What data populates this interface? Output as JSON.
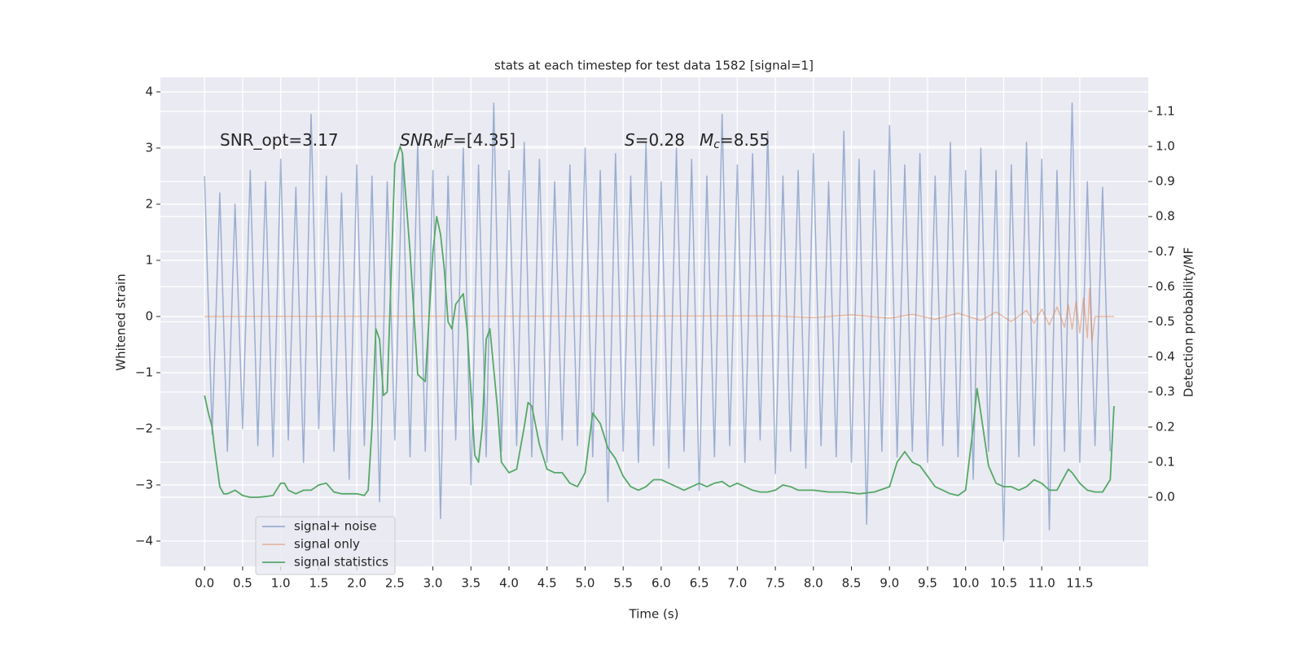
{
  "chart_data": {
    "type": "line",
    "title": "stats at each timestep for test data 1582 [signal=1]",
    "xlabel": "Time (s)",
    "ylabel": "Whitened strain",
    "y2label": "Detection probability/MF",
    "xlim": [
      -0.58,
      12.4
    ],
    "ylim": [
      -4.45,
      4.26
    ],
    "y2lim": [
      -0.197,
      1.197
    ],
    "xticks": [
      {
        "value": 0,
        "label": "0.0"
      },
      0.5,
      {
        "value": 1,
        "label": "1.0"
      },
      1.5,
      {
        "value": 2,
        "label": "2.0"
      },
      2.5,
      {
        "value": 3,
        "label": "3.0"
      },
      3.5,
      {
        "value": 4,
        "label": "4.0"
      },
      4.5,
      {
        "value": 5,
        "label": "5.0"
      },
      5.5,
      {
        "value": 6,
        "label": "6.0"
      },
      6.5,
      {
        "value": 7,
        "label": "7.0"
      },
      7.5,
      {
        "value": 8,
        "label": "8.0"
      },
      8.5,
      {
        "value": 9,
        "label": "9.0"
      },
      9.5,
      {
        "value": 10,
        "label": "10.0"
      },
      10.5,
      {
        "value": 11,
        "label": "11.0"
      },
      11.5
    ],
    "yticks": [
      {
        "value": -4,
        "label": "−4"
      },
      {
        "value": -3,
        "label": "−3"
      },
      {
        "value": -2,
        "label": "−2"
      },
      {
        "value": -1,
        "label": "−1"
      },
      0,
      1,
      2,
      3,
      4
    ],
    "y2ticks": [
      {
        "value": 0,
        "label": "0.0"
      },
      0.1,
      0.2,
      0.3,
      0.4,
      0.5,
      0.6,
      0.7,
      0.8,
      0.9,
      {
        "value": 1,
        "label": "1.0"
      },
      1.1
    ],
    "grid": true,
    "legend": "lower left",
    "annotations": [
      {
        "parts": [
          {
            "text": "SNR_opt=3.17",
            "style": "normal"
          }
        ]
      },
      {
        "parts": [
          {
            "text": "SNR",
            "style": "italic"
          },
          {
            "text": "M",
            "style": "italic-sub"
          },
          {
            "text": "F",
            "style": "italic"
          },
          {
            "text": "=[4.35]",
            "style": "normal"
          }
        ]
      },
      {
        "parts": [
          {
            "text": "S",
            "style": "italic"
          },
          {
            "text": "=0.28",
            "style": "normal"
          }
        ]
      },
      {
        "parts": [
          {
            "text": "M",
            "style": "italic"
          },
          {
            "text": "c",
            "style": "italic-sub"
          },
          {
            "text": "=8.55",
            "style": "normal"
          }
        ]
      }
    ],
    "series": [
      {
        "name": "signal+ noise",
        "color": "#4c72b0",
        "opacity": 0.5,
        "axis": "y",
        "x": [
          0,
          0.1,
          0.2,
          0.3,
          0.4,
          0.5,
          0.6,
          0.7,
          0.8,
          0.9,
          1.0,
          1.1,
          1.2,
          1.3,
          1.4,
          1.5,
          1.6,
          1.7,
          1.8,
          1.9,
          2.0,
          2.1,
          2.2,
          2.3,
          2.4,
          2.5,
          2.6,
          2.7,
          2.8,
          2.9,
          3.0,
          3.1,
          3.2,
          3.3,
          3.4,
          3.5,
          3.6,
          3.7,
          3.8,
          3.9,
          4.0,
          4.1,
          4.2,
          4.3,
          4.4,
          4.5,
          4.6,
          4.7,
          4.8,
          4.9,
          5.0,
          5.1,
          5.2,
          5.3,
          5.4,
          5.5,
          5.6,
          5.7,
          5.8,
          5.9,
          6.0,
          6.1,
          6.2,
          6.3,
          6.4,
          6.5,
          6.6,
          6.7,
          6.8,
          6.9,
          7.0,
          7.1,
          7.2,
          7.3,
          7.4,
          7.5,
          7.6,
          7.7,
          7.8,
          7.9,
          8.0,
          8.1,
          8.2,
          8.3,
          8.4,
          8.5,
          8.6,
          8.7,
          8.8,
          8.9,
          9.0,
          9.1,
          9.2,
          9.3,
          9.4,
          9.5,
          9.6,
          9.7,
          9.8,
          9.9,
          10.0,
          10.1,
          10.2,
          10.3,
          10.4,
          10.5,
          10.6,
          10.7,
          10.8,
          10.9,
          11.0,
          11.1,
          11.2,
          11.3,
          11.4,
          11.5,
          11.6,
          11.7,
          11.8,
          11.9
        ],
        "values": [
          2.5,
          -2.1,
          2.2,
          -2.4,
          2.0,
          -2.0,
          2.6,
          -2.3,
          2.4,
          -2.5,
          2.8,
          -2.2,
          2.3,
          -2.6,
          3.6,
          -2.0,
          2.5,
          -2.4,
          2.2,
          -2.9,
          2.7,
          -2.3,
          2.5,
          -3.3,
          2.4,
          -2.2,
          2.9,
          -2.5,
          3.1,
          -2.4,
          2.6,
          -3.6,
          2.5,
          -2.2,
          3.0,
          -3.0,
          2.7,
          -2.5,
          3.8,
          -2.4,
          2.6,
          -2.3,
          3.1,
          -2.5,
          2.8,
          -2.6,
          2.4,
          -2.2,
          2.7,
          -2.3,
          3.0,
          -2.5,
          2.6,
          -3.3,
          2.9,
          -2.4,
          2.5,
          -2.6,
          3.1,
          -2.3,
          2.4,
          -2.7,
          3.0,
          -2.4,
          2.8,
          -3.1,
          2.5,
          -2.5,
          3.6,
          -2.3,
          2.7,
          -2.6,
          2.9,
          -2.2,
          3.3,
          -2.8,
          2.5,
          -2.4,
          2.6,
          -2.7,
          2.9,
          -2.3,
          2.4,
          -2.5,
          3.3,
          -2.6,
          2.8,
          -3.7,
          2.6,
          -2.4,
          3.4,
          -2.5,
          2.7,
          -2.4,
          2.9,
          -2.6,
          2.5,
          -2.3,
          3.1,
          -2.5,
          2.6,
          -2.9,
          3.0,
          -2.4,
          2.6,
          -4.0,
          2.7,
          -2.5,
          3.1,
          -2.3,
          2.8,
          -3.8,
          2.6,
          -2.4,
          3.8,
          -2.6,
          2.4,
          -2.3,
          2.3,
          -2.4
        ]
      },
      {
        "name": "signal only",
        "color": "#dd8452",
        "opacity": 0.5,
        "axis": "y",
        "x": [
          0,
          7.5,
          8.0,
          8.5,
          9.0,
          9.3,
          9.6,
          9.9,
          10.2,
          10.4,
          10.6,
          10.8,
          10.9,
          11.0,
          11.1,
          11.2,
          11.3,
          11.35,
          11.4,
          11.45,
          11.5,
          11.55,
          11.6,
          11.63,
          11.66,
          11.7,
          11.95
        ],
        "values": [
          0,
          0.01,
          -0.02,
          0.03,
          -0.03,
          0.04,
          -0.05,
          0.06,
          -0.07,
          0.08,
          -0.09,
          0.11,
          -0.12,
          0.13,
          -0.15,
          0.17,
          -0.19,
          0.21,
          -0.23,
          0.26,
          -0.29,
          0.33,
          -0.38,
          0.5,
          -0.45,
          0,
          0
        ]
      },
      {
        "name": "signal statistics",
        "color": "#55a868",
        "opacity": 1,
        "axis": "y2",
        "x": [
          0,
          0.05,
          0.1,
          0.13,
          0.2,
          0.25,
          0.3,
          0.4,
          0.5,
          0.6,
          0.7,
          0.8,
          0.9,
          1.0,
          1.05,
          1.1,
          1.2,
          1.3,
          1.4,
          1.5,
          1.6,
          1.7,
          1.8,
          1.9,
          2.0,
          2.1,
          2.15,
          2.2,
          2.25,
          2.3,
          2.35,
          2.4,
          2.5,
          2.57,
          2.6,
          2.7,
          2.8,
          2.9,
          3.0,
          3.05,
          3.1,
          3.15,
          3.2,
          3.25,
          3.3,
          3.4,
          3.45,
          3.5,
          3.55,
          3.6,
          3.65,
          3.7,
          3.75,
          3.85,
          3.9,
          4.0,
          4.1,
          4.2,
          4.25,
          4.3,
          4.4,
          4.5,
          4.6,
          4.7,
          4.8,
          4.9,
          5.0,
          5.1,
          5.2,
          5.3,
          5.4,
          5.5,
          5.6,
          5.7,
          5.8,
          5.9,
          6.0,
          6.1,
          6.2,
          6.3,
          6.4,
          6.5,
          6.6,
          6.7,
          6.8,
          6.9,
          7.0,
          7.1,
          7.2,
          7.3,
          7.4,
          7.5,
          7.6,
          7.7,
          7.8,
          7.9,
          8.0,
          8.2,
          8.4,
          8.6,
          8.8,
          9.0,
          9.1,
          9.2,
          9.3,
          9.4,
          9.5,
          9.6,
          9.7,
          9.8,
          9.9,
          10.0,
          10.1,
          10.15,
          10.2,
          10.3,
          10.4,
          10.5,
          10.6,
          10.7,
          10.8,
          10.9,
          11.0,
          11.1,
          11.2,
          11.3,
          11.35,
          11.4,
          11.5,
          11.6,
          11.7,
          11.8,
          11.9,
          11.95
        ],
        "values": [
          0.29,
          0.24,
          0.2,
          0.14,
          0.03,
          0.01,
          0.01,
          0.02,
          0.005,
          0.0,
          0.0,
          0.002,
          0.005,
          0.04,
          0.04,
          0.02,
          0.01,
          0.02,
          0.02,
          0.035,
          0.04,
          0.015,
          0.01,
          0.01,
          0.01,
          0.005,
          0.02,
          0.2,
          0.48,
          0.45,
          0.29,
          0.3,
          0.95,
          1.0,
          0.98,
          0.7,
          0.35,
          0.33,
          0.7,
          0.8,
          0.75,
          0.65,
          0.5,
          0.48,
          0.55,
          0.58,
          0.48,
          0.3,
          0.12,
          0.1,
          0.2,
          0.45,
          0.48,
          0.25,
          0.1,
          0.07,
          0.08,
          0.2,
          0.27,
          0.26,
          0.15,
          0.08,
          0.07,
          0.07,
          0.04,
          0.03,
          0.07,
          0.24,
          0.21,
          0.14,
          0.11,
          0.06,
          0.03,
          0.02,
          0.03,
          0.05,
          0.05,
          0.04,
          0.03,
          0.02,
          0.03,
          0.04,
          0.03,
          0.04,
          0.045,
          0.03,
          0.04,
          0.03,
          0.02,
          0.015,
          0.015,
          0.02,
          0.035,
          0.03,
          0.02,
          0.02,
          0.02,
          0.015,
          0.015,
          0.01,
          0.015,
          0.03,
          0.1,
          0.13,
          0.1,
          0.09,
          0.06,
          0.03,
          0.02,
          0.01,
          0.005,
          0.02,
          0.2,
          0.31,
          0.24,
          0.09,
          0.04,
          0.03,
          0.03,
          0.02,
          0.03,
          0.05,
          0.04,
          0.02,
          0.02,
          0.06,
          0.08,
          0.07,
          0.04,
          0.02,
          0.015,
          0.015,
          0.05,
          0.26
        ]
      }
    ]
  }
}
